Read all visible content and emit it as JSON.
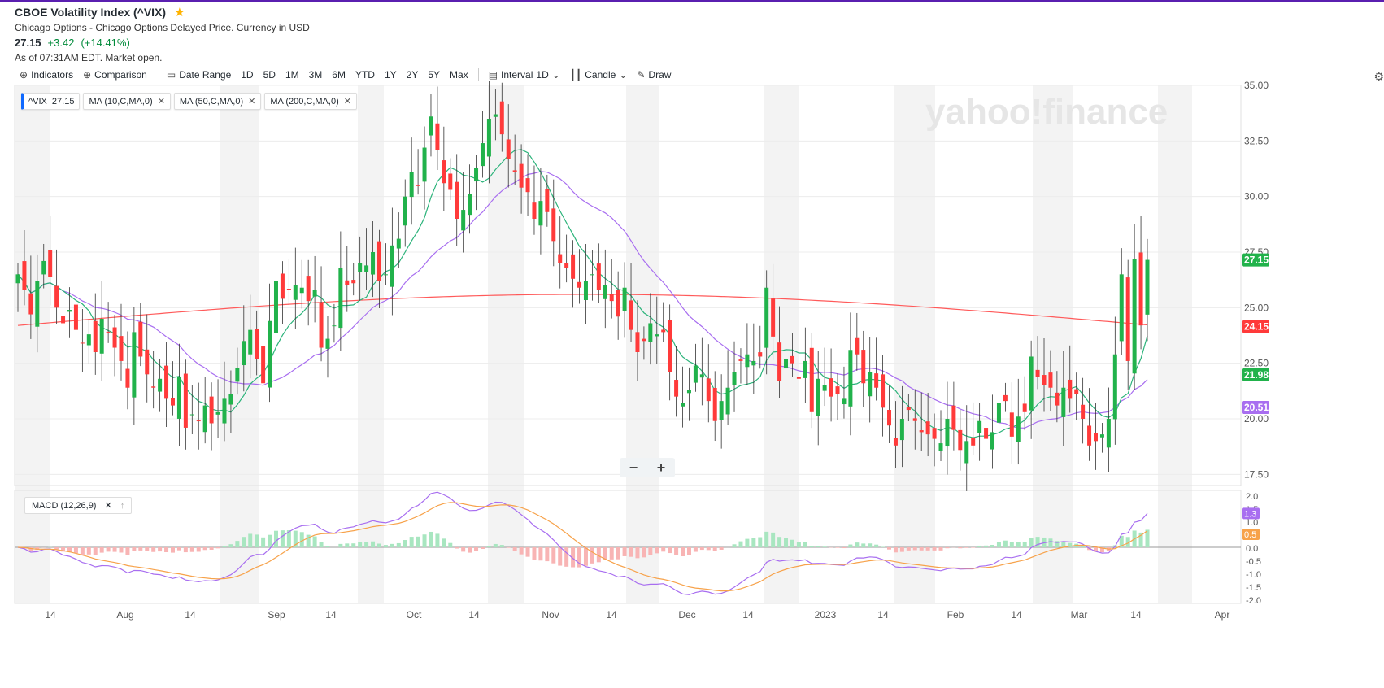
{
  "header": {
    "title": "CBOE Volatility Index (^VIX)",
    "subtitle": "Chicago Options - Chicago Options Delayed Price. Currency in USD",
    "price": "27.15",
    "change": "+3.42",
    "change_pct": "(+14.41%)",
    "as_of": "As of 07:31AM EDT. Market open."
  },
  "toolbar": {
    "indicators": "Indicators",
    "comparison": "Comparison",
    "date_range": "Date Range",
    "ranges": [
      "1D",
      "5D",
      "1M",
      "3M",
      "6M",
      "YTD",
      "1Y",
      "2Y",
      "5Y",
      "Max"
    ],
    "interval_label": "Interval",
    "interval_value": "1D",
    "chart_type": "Candle",
    "draw": "Draw"
  },
  "legend": {
    "vix": "^VIX",
    "vix_value": "27.15",
    "ma10": "MA (10,C,MA,0)",
    "ma50": "MA (50,C,MA,0)",
    "ma200": "MA (200,C,MA,0)",
    "macd": "MACD (12,26,9)"
  },
  "watermark": "yahoo!finance",
  "colors": {
    "up": "#21b24b",
    "down": "#ff3a3a",
    "ma10": "#2bb37a",
    "ma50": "#a86ef0",
    "ma200": "#ff5a5a",
    "macd": "#a86ef0",
    "signal": "#f7a24a",
    "brand": "#5a1fb0"
  },
  "chart_data": {
    "type": "candlestick",
    "ylim": [
      17,
      35
    ],
    "yticks": [
      "35.00",
      "32.50",
      "30.00",
      "27.50",
      "25.00",
      "22.50",
      "20.00",
      "17.50"
    ],
    "ytick_values": [
      35,
      32.5,
      30,
      27.5,
      25,
      22.5,
      20,
      17.5
    ],
    "xticks": [
      "14",
      "Aug",
      "14",
      "Sep",
      "14",
      "Oct",
      "14",
      "Nov",
      "14",
      "Dec",
      "14",
      "2023",
      "14",
      "Feb",
      "14",
      "Mar",
      "14",
      "Apr"
    ],
    "price_tags": [
      {
        "label": "27.15",
        "value": 27.15,
        "color": "#21b24b"
      },
      {
        "label": "24.15",
        "value": 24.15,
        "color": "#ff3a3a"
      },
      {
        "label": "21.98",
        "value": 21.98,
        "color": "#21b24b"
      },
      {
        "label": "20.51",
        "value": 20.51,
        "color": "#a86ef0"
      }
    ],
    "closes": [
      26.5,
      25.8,
      24.7,
      26.2,
      27.1,
      26.4,
      25.0,
      24.3,
      24.9,
      24.0,
      23.4,
      23.8,
      23.0,
      24.5,
      23.9,
      23.2,
      22.6,
      21.4,
      23.9,
      22.8,
      22.0,
      21.4,
      21.8,
      20.9,
      20.6,
      21.9,
      19.6,
      20.2,
      19.9,
      20.6,
      19.8,
      20.3,
      20.9,
      21.1,
      22.3,
      23.5,
      24.0,
      22.7,
      21.6,
      24.4,
      26.2,
      25.4,
      25.8,
      26.0,
      25.9,
      25.3,
      25.8,
      23.2,
      23.6,
      24.2,
      26.8,
      26.0,
      26.1,
      27.0,
      26.9,
      27.5,
      26.2,
      26.5,
      27.8,
      28.1,
      30.0,
      31.1,
      30.5,
      32.2,
      33.6,
      32.1,
      30.6,
      30.3,
      29.0,
      29.4,
      30.1,
      31.3,
      32.4,
      33.5,
      33.7,
      32.8,
      31.7,
      31.1,
      30.4,
      30.2,
      29.0,
      29.8,
      29.3,
      28.0,
      27.0,
      26.8,
      26.3,
      25.9,
      26.2,
      26.5,
      25.8,
      26.0,
      25.3,
      24.6,
      25.9,
      24.0,
      23.0,
      23.5,
      24.3,
      23.8,
      23.9,
      22.1,
      21.0,
      20.7,
      21.3,
      22.4,
      22.0,
      20.8,
      19.9,
      20.8,
      21.4,
      22.1,
      22.6,
      22.9,
      22.6,
      22.8,
      25.9,
      23.7,
      21.7,
      22.7,
      22.5,
      21.8,
      22.6,
      20.3,
      21.8,
      21.5,
      21.0,
      21.1,
      20.9,
      23.1,
      22.9,
      21.6,
      22.1,
      21.4,
      20.5,
      19.7,
      18.8,
      20.0,
      20.4,
      19.9,
      19.4,
      19.3,
      19.1,
      18.9,
      20.0,
      19.5,
      18.6,
      19.0,
      18.8,
      19.9,
      19.1,
      19.4,
      20.7,
      20.8,
      19.2,
      20.1,
      20.3,
      22.8,
      21.9,
      21.5,
      21.4,
      20.6,
      21.4,
      20.9,
      21.1,
      20.0,
      18.8,
      19.0,
      19.3,
      20.0,
      22.9,
      26.5,
      22.6,
      27.2,
      24.2,
      27.15
    ]
  }
}
